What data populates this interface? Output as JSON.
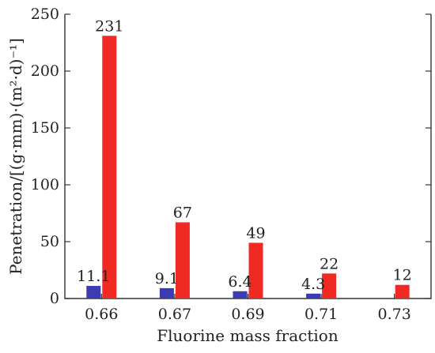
{
  "chart_data": {
    "type": "bar",
    "xlabel": "Fluorine mass fraction",
    "ylabel": "Penetration/[(g·mm)·(m²·d)⁻¹]",
    "ylim": [
      0,
      250
    ],
    "yticks": [
      0,
      50,
      100,
      150,
      200,
      250
    ],
    "categories": [
      "0.66",
      "0.67",
      "0.69",
      "0.71",
      "0.73"
    ],
    "series": [
      {
        "color": "#3b3bb3",
        "values": [
          11.1,
          9.1,
          6.4,
          4.3,
          null
        ],
        "labels": [
          "11.1",
          "9.1",
          "6.4",
          "4.3",
          ""
        ]
      },
      {
        "color": "#f02a22",
        "values": [
          231,
          67,
          49,
          22,
          12
        ],
        "labels": [
          "231",
          "67",
          "49",
          "22",
          "12"
        ]
      }
    ],
    "grid": false,
    "legend": "none"
  }
}
